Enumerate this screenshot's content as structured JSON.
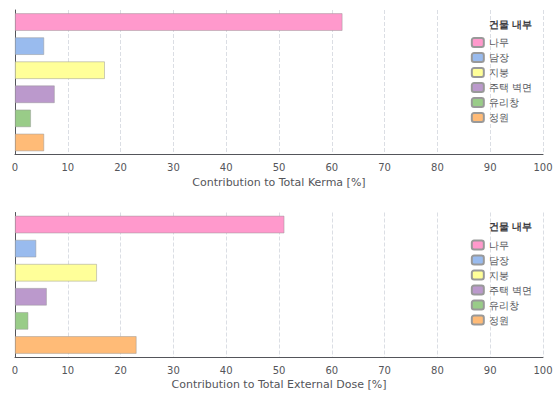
{
  "chart_data": [
    {
      "type": "bar",
      "orientation": "horizontal",
      "categories": [
        "나무",
        "담장",
        "지붕",
        "주택 벽면",
        "유리창",
        "정원"
      ],
      "values": [
        62,
        5.5,
        17.0,
        7.5,
        3.0,
        5.5
      ],
      "colors": [
        "#FF99CC",
        "#99BBEE",
        "#FFFF99",
        "#BB99CC",
        "#99CC88",
        "#FFBB77"
      ],
      "xlabel": "Contribution to Total Kerma [%]",
      "legend_title": "건물 내부",
      "xlim": [
        0,
        100
      ],
      "xticks": [
        0,
        10,
        20,
        30,
        40,
        50,
        60,
        70,
        80,
        90,
        100
      ],
      "grid": true,
      "legend": "upper right",
      "tick_labels": "x"
    },
    {
      "type": "bar",
      "orientation": "horizontal",
      "categories": [
        "나무",
        "담장",
        "지붕",
        "주택 벽면",
        "유리창",
        "정원"
      ],
      "values": [
        51,
        4.0,
        15.5,
        6.0,
        2.5,
        23
      ],
      "colors": [
        "#FF99CC",
        "#99BBEE",
        "#FFFF99",
        "#BB99CC",
        "#99CC88",
        "#FFBB77"
      ],
      "xlabel": "Contribution to Total External Dose [%]",
      "legend_title": "건물 내부",
      "xlim": [
        0,
        100
      ],
      "xticks": [
        0,
        10,
        20,
        30,
        40,
        50,
        60,
        70,
        80,
        90,
        100
      ],
      "grid": true,
      "legend": "upper right",
      "tick_labels": "x"
    }
  ]
}
